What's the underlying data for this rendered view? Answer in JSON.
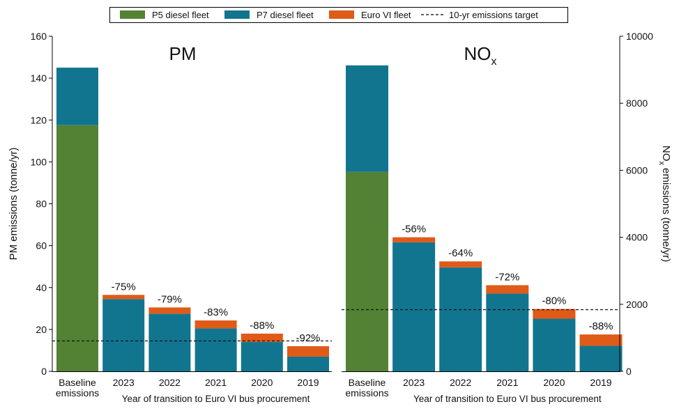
{
  "legend": {
    "items": [
      {
        "label": "P5 diesel fleet",
        "color": "#548235",
        "kind": "swatch"
      },
      {
        "label": "P7 diesel fleet",
        "color": "#12758f",
        "kind": "swatch"
      },
      {
        "label": "Euro VI fleet",
        "color": "#e05a18",
        "kind": "swatch"
      },
      {
        "label": "10-yr emissions target",
        "kind": "dashed-line"
      }
    ]
  },
  "chart_data": [
    {
      "type": "bar",
      "stacked": true,
      "title": "PM",
      "ylabel": "PM emissions (tonne/yr)",
      "xlabel": "Year of transition to Euro VI bus procurement",
      "ylim": [
        0,
        160
      ],
      "yticks": [
        0,
        20,
        40,
        60,
        80,
        100,
        120,
        140,
        160
      ],
      "y_axis_side": "left",
      "categories": [
        "Baseline\nemissions",
        "2023",
        "2022",
        "2021",
        "2020",
        "2019"
      ],
      "series": [
        {
          "name": "P5 diesel fleet",
          "color": "#548235",
          "values": [
            117.5,
            0,
            0,
            0,
            0,
            0
          ]
        },
        {
          "name": "P7 diesel fleet",
          "color": "#12758f",
          "values": [
            27.5,
            34.5,
            27.5,
            20.5,
            14,
            7
          ]
        },
        {
          "name": "Euro VI fleet",
          "color": "#e05a18",
          "values": [
            0,
            2,
            3,
            3.8,
            4,
            5
          ]
        }
      ],
      "reduction_labels": [
        "",
        "-75%",
        "-79%",
        "-83%",
        "-88%",
        "-92%"
      ],
      "target": 14.5
    },
    {
      "type": "bar",
      "stacked": true,
      "title": "NO",
      "title_sub": "x",
      "ylabel": "NO",
      "ylabel_sub": "x",
      "ylabel_rest": " emissions (tonne/yr)",
      "xlabel": "Year of transition to Euro VI bus procurement",
      "ylim": [
        0,
        10000
      ],
      "yticks": [
        0,
        2000,
        4000,
        6000,
        8000,
        10000
      ],
      "y_axis_side": "right",
      "categories": [
        "Baseline\nemissions",
        "2023",
        "2022",
        "2021",
        "2020",
        "2019"
      ],
      "series": [
        {
          "name": "P5 diesel fleet",
          "color": "#548235",
          "values": [
            5950,
            0,
            0,
            0,
            0,
            0
          ]
        },
        {
          "name": "P7 diesel fleet",
          "color": "#12758f",
          "values": [
            3180,
            3850,
            3100,
            2320,
            1570,
            760
          ]
        },
        {
          "name": "Euro VI fleet",
          "color": "#e05a18",
          "values": [
            0,
            150,
            180,
            250,
            290,
            340
          ]
        }
      ],
      "reduction_labels": [
        "",
        "-56%",
        "-64%",
        "-72%",
        "-80%",
        "-88%"
      ],
      "target": 1840
    }
  ]
}
